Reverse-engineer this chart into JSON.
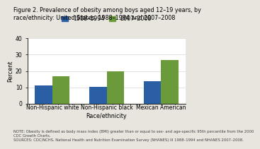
{
  "title_line1": "Figure 2. Prevalence of obesity among boys aged 12–19 years, by",
  "title_line2": "race/ethnicity: United States, 1988–1994 and 2007–2008",
  "categories": [
    "Non-Hispanic white",
    "Non-Hispanic black",
    "Mexican American"
  ],
  "series": [
    {
      "label": "1988–1994",
      "values": [
        11.1,
        10.5,
        13.8
      ],
      "color": "#2b5fa5"
    },
    {
      "label": "2007–2008",
      "values": [
        16.7,
        19.8,
        26.5
      ],
      "color": "#6a9a3a"
    }
  ],
  "xlabel": "Race/ethnicity",
  "ylabel": "Percent",
  "ylim": [
    0,
    40
  ],
  "yticks": [
    0,
    10,
    20,
    30,
    40
  ],
  "note_line1": "NOTE: Obesity is defined as body mass index (BMI) greater than or equal to sex- and age-specific 95th percentile from the 2000",
  "note_line2": "CDC Growth Charts.",
  "note_line3": "SOURCES: CDC/NCHS, National Health and Nutrition Examination Survey (NHANES) III 1988–1994 and NHANES 2007–2008.",
  "outer_bg": "#e8e4de",
  "plot_bg": "#ffffff",
  "bar_width": 0.32,
  "title_fontsize": 5.8,
  "legend_fontsize": 5.8,
  "axis_label_fontsize": 5.8,
  "tick_fontsize": 5.5,
  "note_fontsize": 3.8,
  "bar_colors_1988": "#2b5fa5",
  "bar_colors_2007": "#6a9a3a"
}
